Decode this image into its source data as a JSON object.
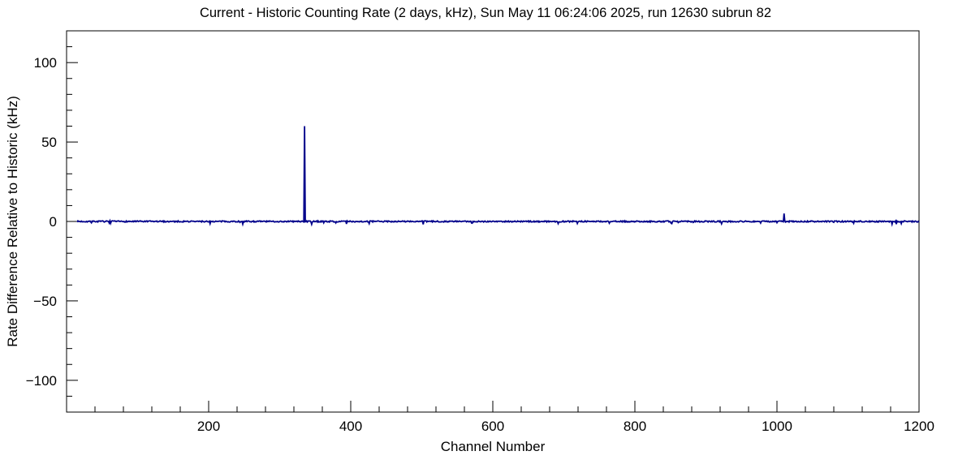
{
  "chart_data": {
    "type": "line",
    "title": "Current - Historic Counting Rate (2 days, kHz), Sun May 11 06:24:06 2025, run 12630 subrun 82",
    "xlabel": "Channel Number",
    "ylabel": "Rate Difference Relative to Historic (kHz)",
    "xlim": [
      0,
      1200
    ],
    "ylim": [
      -120,
      120
    ],
    "x_ticks": [
      200,
      400,
      600,
      800,
      1000,
      1200
    ],
    "y_ticks": [
      -100,
      -50,
      0,
      50,
      100
    ],
    "x_minor_step": 40,
    "y_minor_step": 10,
    "grid": false,
    "legend": false,
    "line_color": "#00008b",
    "baseline": 0,
    "noise_amplitude": 1,
    "data_channel_range": [
      15,
      1200
    ],
    "spikes": [
      {
        "channel": 335,
        "value": 60
      },
      {
        "channel": 1010,
        "value": 5
      }
    ]
  }
}
